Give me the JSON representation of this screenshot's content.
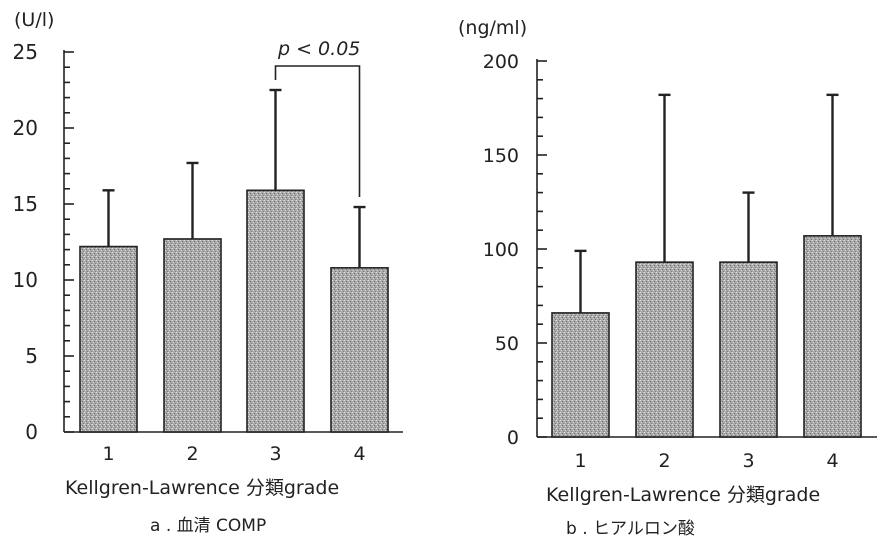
{
  "chart_data": [
    {
      "type": "bar",
      "ylabel": "(U/l)",
      "ylim": [
        0,
        25
      ],
      "yticks": [
        0,
        5,
        10,
        15,
        20,
        25
      ],
      "minor_step": 1,
      "categories": [
        "1",
        "2",
        "3",
        "4"
      ],
      "values": [
        12.2,
        12.7,
        15.9,
        10.8
      ],
      "error_upper": [
        15.9,
        17.7,
        22.5,
        14.8
      ],
      "xlabel": "Kellgren-Lawrence 分類grade",
      "caption": "a . 血清 COMP",
      "significance": {
        "from": "3",
        "to": "4",
        "label": "p < 0.05"
      },
      "grid": false
    },
    {
      "type": "bar",
      "ylabel": "(ng/ml)",
      "ylim": [
        0,
        200
      ],
      "yticks": [
        0,
        50,
        100,
        150,
        200
      ],
      "minor_step": 10,
      "categories": [
        "1",
        "2",
        "3",
        "4"
      ],
      "values": [
        66,
        93,
        93,
        107
      ],
      "error_upper": [
        99,
        182,
        130,
        182
      ],
      "xlabel": "Kellgren-Lawrence 分類grade",
      "caption": "b . ヒアルロン酸",
      "grid": false
    }
  ],
  "colors": {
    "ink": "#222222",
    "bar_base": "#a8a8a8",
    "bar_light": "#dcdcdc"
  }
}
